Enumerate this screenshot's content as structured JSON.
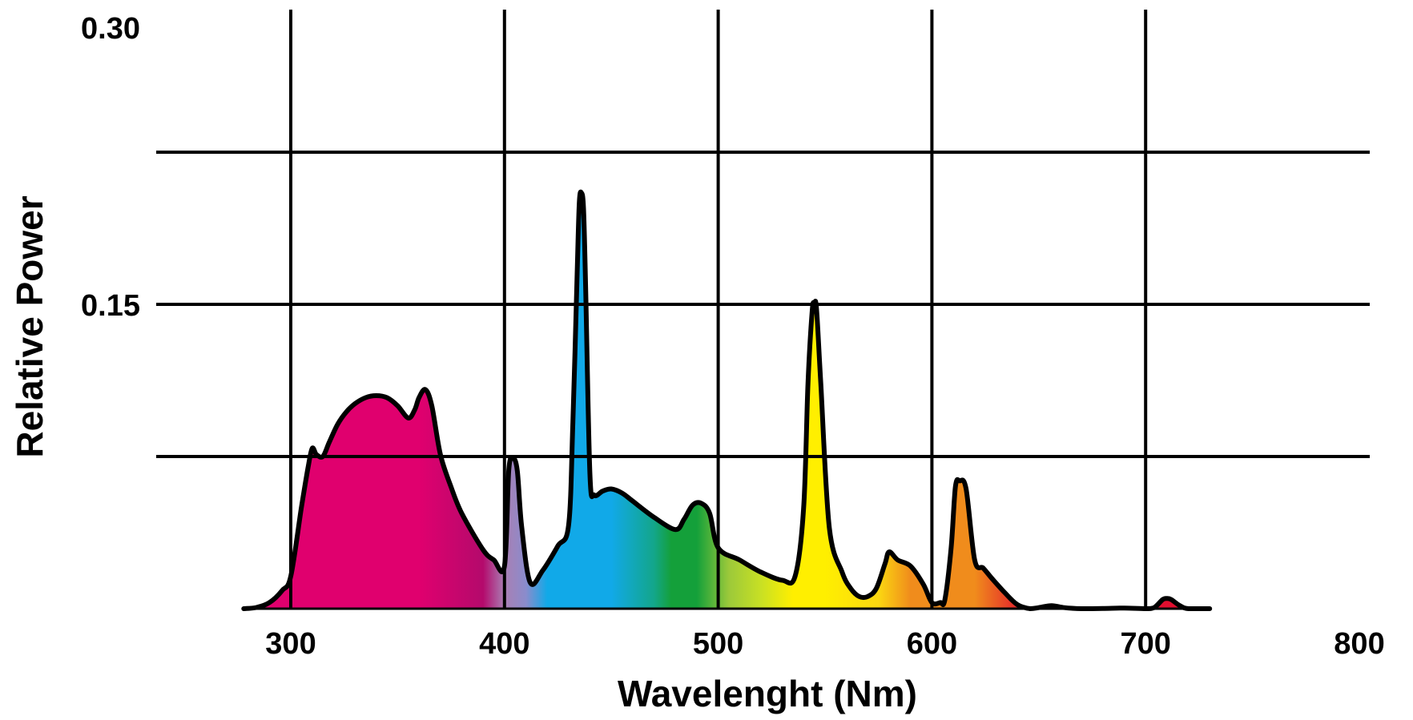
{
  "chart_data": {
    "type": "area",
    "title": "",
    "xlabel": "Wavelenght (Nm)",
    "ylabel": "Relative Power",
    "xlim": [
      300,
      800
    ],
    "ylim": [
      0,
      0.3
    ],
    "x_ticks": [
      300,
      400,
      500,
      600,
      700,
      800
    ],
    "x_tick_labels": [
      "300",
      "400",
      "500",
      "600",
      "700",
      "800"
    ],
    "y_tick_labels": [
      {
        "value": 0.3,
        "label": "0.30"
      },
      {
        "value": 0.15,
        "label": "0.15"
      }
    ],
    "y_gridlines": [
      0.075,
      0.15,
      0.225
    ],
    "x_gridlines": [
      300,
      400,
      500,
      600,
      700
    ],
    "grid": true,
    "legend": "none",
    "fill": "spectral color gradient under curve",
    "series": [
      {
        "x": [
          278,
          284,
          290,
          296,
          300,
          305,
          308,
          310,
          312,
          315,
          318,
          322,
          326,
          330,
          335,
          340,
          345,
          350,
          355,
          358,
          360,
          363,
          366,
          370,
          375,
          380,
          390,
          395,
          400,
          402,
          404,
          406,
          408,
          412,
          418,
          425,
          430,
          432,
          434,
          435,
          436,
          437,
          438,
          440,
          442,
          446,
          450,
          455,
          460,
          470,
          480,
          484,
          488,
          492,
          496,
          500,
          510,
          520,
          530,
          536,
          540,
          542,
          544,
          545,
          546,
          548,
          552,
          558,
          562,
          566,
          570,
          574,
          578,
          580,
          584,
          590,
          596,
          600,
          604,
          606,
          609,
          611,
          613,
          616,
          620,
          624,
          628,
          634,
          640,
          646,
          650,
          656,
          662,
          670,
          680,
          690,
          700,
          704,
          708,
          710,
          712,
          716,
          720,
          730
        ],
        "values": [
          0.0,
          0.0006,
          0.003,
          0.009,
          0.016,
          0.05,
          0.069,
          0.079,
          0.076,
          0.075,
          0.082,
          0.091,
          0.097,
          0.101,
          0.104,
          0.105,
          0.104,
          0.1,
          0.094,
          0.098,
          0.104,
          0.108,
          0.1,
          0.076,
          0.06,
          0.047,
          0.029,
          0.024,
          0.021,
          0.068,
          0.074,
          0.068,
          0.041,
          0.013,
          0.019,
          0.031,
          0.041,
          0.092,
          0.165,
          0.2,
          0.205,
          0.197,
          0.157,
          0.066,
          0.056,
          0.058,
          0.059,
          0.057,
          0.053,
          0.045,
          0.039,
          0.044,
          0.051,
          0.052,
          0.047,
          0.03,
          0.024,
          0.018,
          0.014,
          0.016,
          0.05,
          0.111,
          0.147,
          0.15,
          0.148,
          0.111,
          0.04,
          0.018,
          0.01,
          0.006,
          0.006,
          0.01,
          0.022,
          0.028,
          0.024,
          0.021,
          0.012,
          0.003,
          0.003,
          0.004,
          0.03,
          0.06,
          0.063,
          0.059,
          0.024,
          0.02,
          0.015,
          0.008,
          0.002,
          0.0,
          0.0005,
          0.0015,
          0.0005,
          0.0,
          0.0001,
          0.0003,
          0.0,
          0.0005,
          0.0045,
          0.005,
          0.0045,
          0.0015,
          0.0,
          0.0
        ]
      }
    ],
    "colors": {
      "magenta": "#e0006e",
      "violet": "#a97fb4",
      "cyan": "#11a9e8",
      "green": "#14a03a",
      "yellow": "#ffef00",
      "orange": "#f08c1c",
      "red": "#e20e2f",
      "grid": "#000000",
      "curve": "#000000"
    }
  }
}
